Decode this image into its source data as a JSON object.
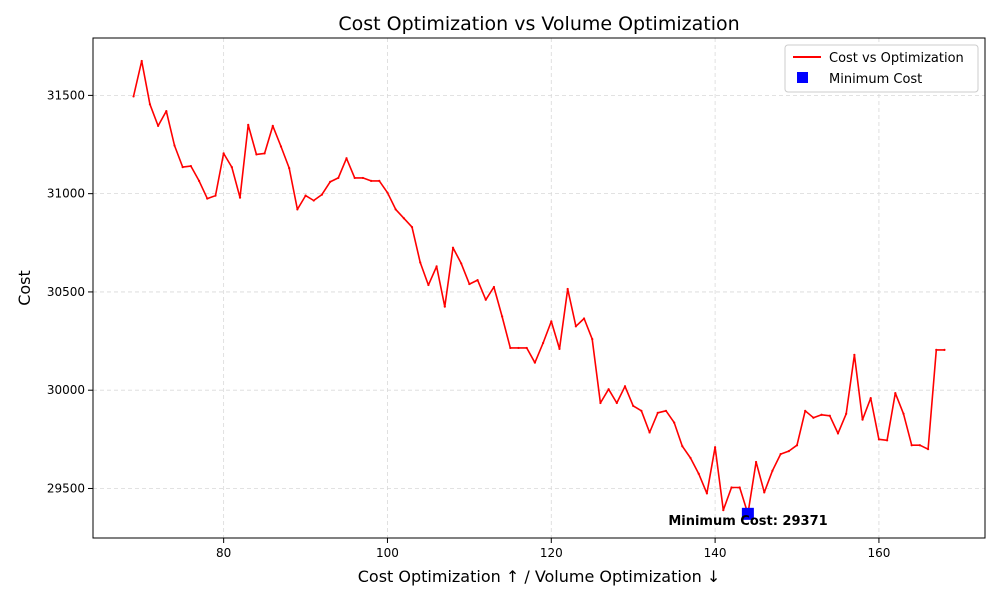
{
  "chart_data": {
    "type": "line",
    "title": "Cost Optimization vs Volume Optimization",
    "xlabel": "Cost Optimization ↑ / Volume Optimization ↓",
    "ylabel": "Cost",
    "xlim": [
      64.05,
      172.95
    ],
    "ylim": [
      29248,
      31792
    ],
    "xticks": [
      80,
      100,
      120,
      140,
      160
    ],
    "yticks": [
      29500,
      30000,
      30500,
      31000,
      31500
    ],
    "grid": true,
    "legend_position": "upper right",
    "series": [
      {
        "name": "Cost vs Optimization",
        "color": "#ff0000",
        "x": [
          69,
          70,
          71,
          72,
          73,
          74,
          75,
          76,
          77,
          78,
          79,
          80,
          81,
          82,
          83,
          84,
          85,
          86,
          87,
          88,
          89,
          90,
          91,
          92,
          93,
          94,
          95,
          96,
          97,
          98,
          99,
          100,
          101,
          102,
          103,
          104,
          105,
          106,
          107,
          108,
          109,
          110,
          111,
          112,
          113,
          114,
          115,
          116,
          117,
          118,
          119,
          120,
          121,
          122,
          123,
          124,
          125,
          126,
          127,
          128,
          129,
          130,
          131,
          132,
          133,
          134,
          135,
          136,
          137,
          138,
          139,
          140,
          141,
          142,
          143,
          144,
          145,
          146,
          147,
          148,
          149,
          150,
          151,
          152,
          153,
          154,
          155,
          156,
          157,
          158,
          159,
          160,
          161,
          162,
          163,
          164,
          165,
          166,
          167,
          168
        ],
        "y": [
          31495,
          31675,
          31455,
          31345,
          31420,
          31245,
          31135,
          31140,
          31065,
          30975,
          30990,
          31205,
          31135,
          30980,
          31350,
          31200,
          31205,
          31345,
          31240,
          31130,
          30920,
          30990,
          30965,
          30995,
          31060,
          31080,
          31180,
          31080,
          31080,
          31065,
          31065,
          31005,
          30920,
          30875,
          30830,
          30650,
          30535,
          30630,
          30425,
          30725,
          30645,
          30540,
          30560,
          30460,
          30525,
          30375,
          30215,
          30215,
          30215,
          30140,
          30240,
          30350,
          30210,
          30515,
          30325,
          30365,
          30260,
          29935,
          30005,
          29935,
          30020,
          29920,
          29895,
          29785,
          29885,
          29895,
          29835,
          29715,
          29655,
          29575,
          29475,
          29710,
          29390,
          29505,
          29505,
          29371,
          29635,
          29480,
          29590,
          29675,
          29690,
          29720,
          29895,
          29860,
          29875,
          29870,
          29780,
          29880,
          30180,
          29850,
          29960,
          29750,
          29745,
          29985,
          29880,
          29720,
          29720,
          29700,
          30205,
          30205
        ]
      },
      {
        "name": "Minimum Cost",
        "color": "#0000ff",
        "x": [
          144
        ],
        "y": [
          29371
        ]
      }
    ],
    "annotations": [
      {
        "text": "Minimum Cost: 29371",
        "x": 144,
        "y": 29371
      }
    ]
  }
}
